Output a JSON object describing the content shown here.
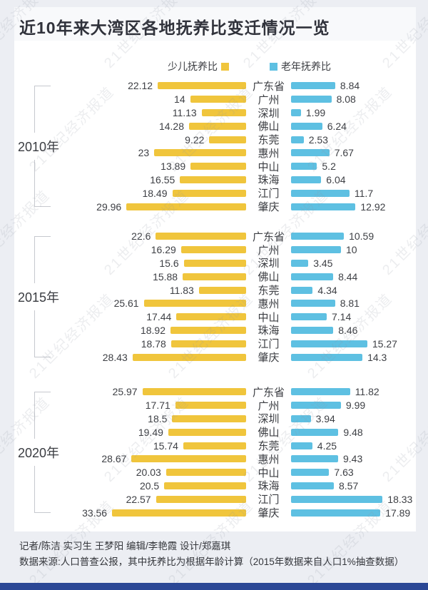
{
  "title": "近10年来大湾区各地抚养比变迁情况一览",
  "legend": {
    "child": "少儿抚养比",
    "elderly": "老年抚养比"
  },
  "colors": {
    "child": "#F0C53C",
    "elderly": "#5EC0E2",
    "accent_bar": "#2B4795",
    "title_text": "#30323B"
  },
  "watermark": {
    "text": "21世纪经济报道"
  },
  "chart_data": {
    "type": "bar",
    "orientation": "horizontal-diverging",
    "legend_position": "top-center",
    "categories": [
      "广东省",
      "广州",
      "深圳",
      "佛山",
      "东莞",
      "惠州",
      "中山",
      "珠海",
      "江门",
      "肇庆"
    ],
    "series_names": [
      "少儿抚养比",
      "老年抚养比"
    ],
    "xlim_child": [
      0,
      34
    ],
    "xlim_elderly": [
      0,
      19
    ],
    "groups": [
      {
        "year": "2010年",
        "series": [
          {
            "name": "少儿抚养比",
            "values": [
              22.12,
              14,
              11.13,
              14.28,
              9.22,
              23,
              13.89,
              16.55,
              18.49,
              29.96
            ]
          },
          {
            "name": "老年抚养比",
            "values": [
              8.84,
              8.08,
              1.99,
              6.24,
              2.53,
              7.67,
              5.2,
              6.04,
              11.7,
              12.92
            ]
          }
        ]
      },
      {
        "year": "2015年",
        "series": [
          {
            "name": "少儿抚养比",
            "values": [
              22.6,
              16.29,
              15.6,
              15.88,
              11.83,
              25.61,
              17.44,
              18.92,
              18.78,
              28.43
            ]
          },
          {
            "name": "老年抚养比",
            "values": [
              10.59,
              10,
              3.45,
              8.44,
              4.34,
              8.81,
              7.14,
              8.46,
              15.27,
              14.3
            ]
          }
        ]
      },
      {
        "year": "2020年",
        "series": [
          {
            "name": "少儿抚养比",
            "values": [
              25.97,
              17.71,
              18.5,
              19.49,
              15.74,
              28.67,
              20.03,
              20.5,
              22.57,
              33.56
            ]
          },
          {
            "name": "老年抚养比",
            "values": [
              11.82,
              9.99,
              3.94,
              9.48,
              4.25,
              9.43,
              7.63,
              8.57,
              18.33,
              17.89
            ]
          }
        ]
      }
    ]
  },
  "footer": {
    "credits": "记者/陈洁  实习生 王梦阳   编辑/李艳霞   设计/郑嘉琪",
    "source": "数据来源:人口普查公报，其中抚养比为根据年龄计算（2015年数据来自人口1%抽查数据）"
  }
}
